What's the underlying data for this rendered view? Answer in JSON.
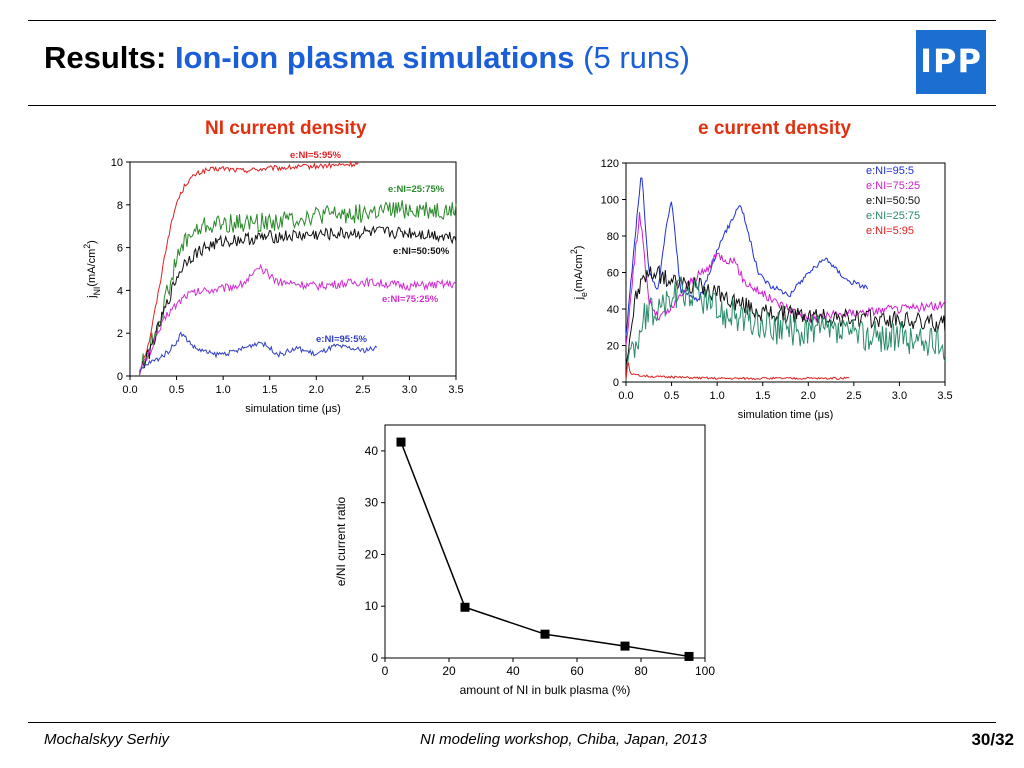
{
  "header": {
    "title_prefix": "Results:",
    "title_main": "Ion-ion plasma simulations",
    "title_suffix": "(5 runs)",
    "logo_text": "IPP",
    "brand_color": "#1a5fd8",
    "accent_color": "#e03010"
  },
  "left_panel": {
    "title": "NI current density"
  },
  "right_panel": {
    "title": "e current density"
  },
  "footer": {
    "author": "Mochalskyy Serhiy",
    "event": "NI modeling workshop,  Chiba, Japan, 2013",
    "page": "30/32"
  },
  "chart_data": [
    {
      "type": "line",
      "xlabel": "simulation time (μs)",
      "ylabel": "j_NI(mA/cm^2)",
      "ylabel_main": "j",
      "ylabel_sub": "NI",
      "ylabel_rest": "(mA/cm",
      "ylabel_sup": "2",
      "ylabel_close": ")",
      "xlim": [
        0,
        3.5
      ],
      "ylim": [
        0,
        10
      ],
      "xticks": [
        "0.0",
        "0.5",
        "1.0",
        "1.5",
        "2.0",
        "2.5",
        "3.0",
        "3.5"
      ],
      "yticks": [
        "0",
        "2",
        "4",
        "6",
        "8",
        "10"
      ],
      "series": [
        {
          "name": "e:NI=5:95%",
          "color": "#e02020",
          "noise": 0.12,
          "x": [
            0.1,
            0.2,
            0.3,
            0.4,
            0.5,
            0.6,
            0.7,
            0.8,
            1.0,
            1.2,
            1.5,
            2.0,
            2.45
          ],
          "y": [
            0.2,
            1.5,
            3.8,
            6.3,
            8.1,
            9.0,
            9.4,
            9.6,
            9.7,
            9.6,
            9.7,
            9.8,
            9.9
          ]
        },
        {
          "name": "e:NI=25:75%",
          "color": "#2a8a2a",
          "noise": 0.45,
          "x": [
            0.1,
            0.2,
            0.3,
            0.4,
            0.5,
            0.6,
            0.8,
            1.0,
            1.5,
            2.0,
            2.5,
            3.0,
            3.5
          ],
          "y": [
            0.3,
            1.2,
            2.4,
            3.9,
            5.4,
            6.4,
            7.0,
            7.1,
            7.2,
            7.5,
            7.6,
            7.8,
            7.7
          ]
        },
        {
          "name": "e:NI=50:50%",
          "color": "#111111",
          "noise": 0.3,
          "x": [
            0.1,
            0.2,
            0.3,
            0.4,
            0.5,
            0.6,
            0.8,
            1.0,
            1.5,
            2.0,
            2.5,
            3.0,
            3.5
          ],
          "y": [
            0.2,
            1.0,
            2.2,
            3.4,
            4.6,
            5.4,
            6.0,
            6.3,
            6.5,
            6.6,
            6.7,
            6.7,
            6.5
          ]
        },
        {
          "name": "e:NI=75:25%",
          "color": "#d030d0",
          "noise": 0.2,
          "x": [
            0.1,
            0.2,
            0.3,
            0.4,
            0.6,
            0.8,
            1.0,
            1.2,
            1.4,
            1.6,
            2.0,
            2.5,
            3.0,
            3.5
          ],
          "y": [
            0.2,
            1.0,
            2.0,
            2.9,
            3.8,
            4.0,
            4.1,
            4.3,
            5.0,
            4.4,
            4.2,
            4.4,
            4.2,
            4.3
          ]
        },
        {
          "name": "e:NI=95:5%",
          "color": "#3040c0",
          "noise": 0.12,
          "x": [
            0.1,
            0.2,
            0.3,
            0.4,
            0.5,
            0.55,
            0.7,
            0.9,
            1.1,
            1.4,
            1.6,
            1.8,
            2.0,
            2.2,
            2.5,
            2.65
          ],
          "y": [
            0.2,
            0.6,
            0.8,
            1.1,
            1.6,
            2.0,
            1.3,
            1.0,
            1.1,
            1.6,
            1.0,
            1.3,
            1.0,
            1.4,
            1.2,
            1.3
          ]
        }
      ]
    },
    {
      "type": "line",
      "xlabel": "simulation time (μs)",
      "ylabel": "j_e(mA/cm^2)",
      "ylabel_main": "j",
      "ylabel_sub": "e",
      "ylabel_rest": "(mA/cm",
      "ylabel_sup": "2",
      "ylabel_close": ")",
      "xlim": [
        0,
        3.5
      ],
      "ylim": [
        0,
        120
      ],
      "xticks": [
        "0.0",
        "0.5",
        "1.0",
        "1.5",
        "2.0",
        "2.5",
        "3.0",
        "3.5"
      ],
      "yticks": [
        "0",
        "20",
        "40",
        "60",
        "80",
        "100",
        "120"
      ],
      "series": [
        {
          "name": "e:NI=95:5",
          "color": "#2030d0",
          "noise": 1.5,
          "x": [
            0,
            0.1,
            0.17,
            0.25,
            0.35,
            0.45,
            0.5,
            0.6,
            0.8,
            1.0,
            1.15,
            1.25,
            1.3,
            1.45,
            1.6,
            1.8,
            2.0,
            2.2,
            2.3,
            2.45,
            2.65
          ],
          "y": [
            25,
            80,
            116,
            60,
            50,
            88,
            100,
            50,
            45,
            72,
            88,
            98,
            90,
            60,
            52,
            48,
            60,
            68,
            62,
            55,
            52
          ]
        },
        {
          "name": "e:NI=75:25",
          "color": "#d020d0",
          "noise": 2.5,
          "x": [
            0,
            0.1,
            0.15,
            0.25,
            0.35,
            0.5,
            0.7,
            0.9,
            1.0,
            1.2,
            1.3,
            1.6,
            2.0,
            2.5,
            3.0,
            3.5
          ],
          "y": [
            20,
            70,
            93,
            45,
            35,
            40,
            55,
            62,
            70,
            65,
            55,
            45,
            35,
            38,
            40,
            42
          ]
        },
        {
          "name": "e:NI=50:50",
          "color": "#111111",
          "noise": 5,
          "x": [
            0,
            0.1,
            0.2,
            0.3,
            0.5,
            0.8,
            1.0,
            1.3,
            1.5,
            2.0,
            2.5,
            3.0,
            3.5
          ],
          "y": [
            10,
            45,
            58,
            60,
            55,
            52,
            48,
            42,
            38,
            36,
            35,
            34,
            32
          ]
        },
        {
          "name": "e:NI=25:75",
          "color": "#2a8a6a",
          "noise": 9,
          "x": [
            0,
            0.05,
            0.1,
            0.2,
            0.4,
            0.6,
            0.8,
            1.0,
            1.5,
            2.0,
            2.5,
            3.0,
            3.5
          ],
          "y": [
            5,
            25,
            15,
            35,
            42,
            50,
            48,
            40,
            30,
            28,
            26,
            24,
            20
          ]
        },
        {
          "name": "e:NI=5:95",
          "color": "#e02020",
          "noise": 0.6,
          "x": [
            0,
            0.02,
            0.05,
            0.3,
            1.0,
            2.0,
            2.45
          ],
          "y": [
            2,
            12,
            4,
            3,
            2,
            2,
            2
          ]
        }
      ]
    },
    {
      "type": "scatter",
      "xlabel": "amount of NI in bulk plasma (%)",
      "ylabel": "e/NI current ratio",
      "xlim": [
        0,
        100
      ],
      "ylim": [
        0,
        45
      ],
      "xticks": [
        "0",
        "20",
        "40",
        "60",
        "80",
        "100"
      ],
      "yticks": [
        "0",
        "10",
        "20",
        "30",
        "40"
      ],
      "series": [
        {
          "x": [
            5,
            25,
            50,
            75,
            95
          ],
          "y": [
            41.7,
            9.8,
            4.6,
            2.3,
            0.3
          ],
          "color": "#000000"
        }
      ]
    }
  ]
}
